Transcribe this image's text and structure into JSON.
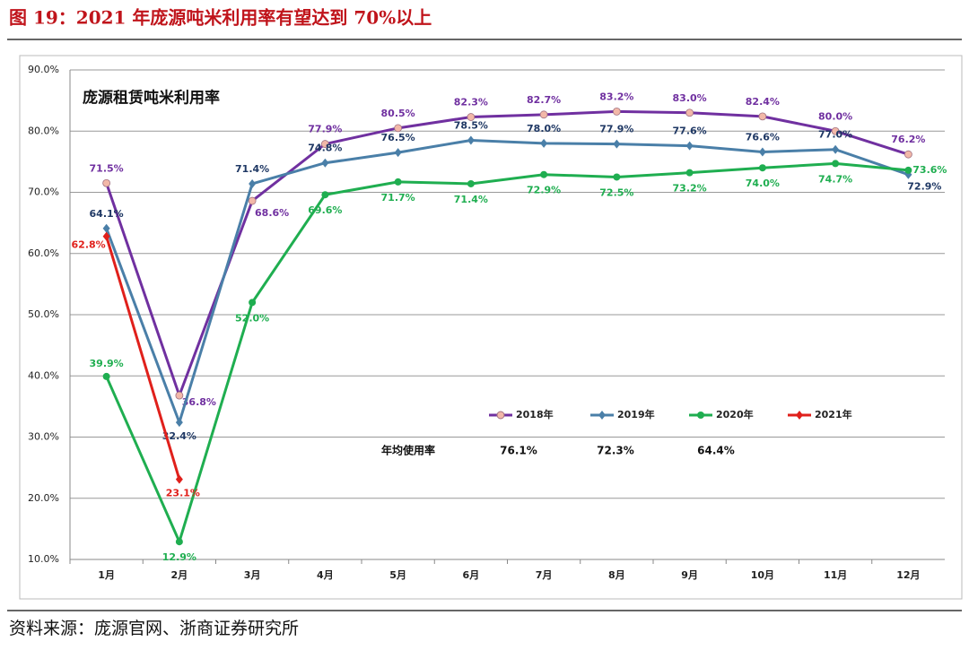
{
  "header": {
    "title": "图 19：2021 年庞源吨米利用率有望达到 70%以上"
  },
  "chart_data": {
    "type": "line",
    "title": "庞源租赁吨米利用率",
    "categories": [
      "1月",
      "2月",
      "3月",
      "4月",
      "5月",
      "6月",
      "7月",
      "8月",
      "9月",
      "10月",
      "11月",
      "12月"
    ],
    "series": [
      {
        "name": "2018年",
        "color": "#7030a0",
        "marker_color": "#f2b8a8",
        "label_color": "#7030a0",
        "values": [
          71.5,
          36.8,
          68.6,
          77.9,
          80.5,
          82.3,
          82.7,
          83.2,
          83.0,
          82.4,
          80.0,
          76.2
        ],
        "value_labels": [
          "71.5%",
          "36.8%",
          "68.6%",
          "77.9%",
          "80.5%",
          "82.3%",
          "82.7%",
          "83.2%",
          "83.0%",
          "82.4%",
          "80.0%",
          "76.2%"
        ]
      },
      {
        "name": "2019年",
        "color": "#4a7fa8",
        "marker_color": "#4a7fa8",
        "label_color": "#1f3864",
        "values": [
          64.1,
          32.4,
          71.4,
          74.8,
          76.5,
          78.5,
          78.0,
          77.9,
          77.6,
          76.6,
          77.0,
          72.9
        ],
        "value_labels": [
          "64.1%",
          "32.4%",
          "71.4%",
          "74.8%",
          "76.5%",
          "78.5%",
          "78.0%",
          "77.9%",
          "77.6%",
          "76.6%",
          "77.0%",
          "72.9%"
        ]
      },
      {
        "name": "2020年",
        "color": "#1fae50",
        "marker_color": "#1fae50",
        "label_color": "#1fae50",
        "values": [
          39.9,
          12.9,
          52.0,
          69.6,
          71.7,
          71.4,
          72.9,
          72.5,
          73.2,
          74.0,
          74.7,
          73.6
        ],
        "value_labels": [
          "39.9%",
          "12.9%",
          "52.0%",
          "69.6%",
          "71.7%",
          "71.4%",
          "72.9%",
          "72.5%",
          "73.2%",
          "74.0%",
          "74.7%",
          "73.6%"
        ]
      },
      {
        "name": "2021年",
        "color": "#e0201b",
        "marker_color": "#e0201b",
        "label_color": "#e0201b",
        "values": [
          62.8,
          23.1,
          null,
          null,
          null,
          null,
          null,
          null,
          null,
          null,
          null,
          null
        ],
        "value_labels": [
          "62.8%",
          "23.1%",
          null,
          null,
          null,
          null,
          null,
          null,
          null,
          null,
          null,
          null
        ]
      }
    ],
    "ylim": [
      10,
      90
    ],
    "yticks": [
      {
        "value": 10,
        "label": "10.0%"
      },
      {
        "value": 20,
        "label": "20.0%"
      },
      {
        "value": 30,
        "label": "30.0%"
      },
      {
        "value": 40,
        "label": "40.0%"
      },
      {
        "value": 50,
        "label": "50.0%"
      },
      {
        "value": 60,
        "label": "60.0%"
      },
      {
        "value": 70,
        "label": "70.0%"
      },
      {
        "value": 80,
        "label": "80.0%"
      },
      {
        "value": 90,
        "label": "90.0%"
      }
    ],
    "grid": true,
    "annual_average": {
      "label": "年均使用率",
      "values": [
        "76.1%",
        "72.3%",
        "64.4%"
      ]
    }
  },
  "footer": {
    "source": "资料来源：庞源官网、浙商证券研究所"
  }
}
